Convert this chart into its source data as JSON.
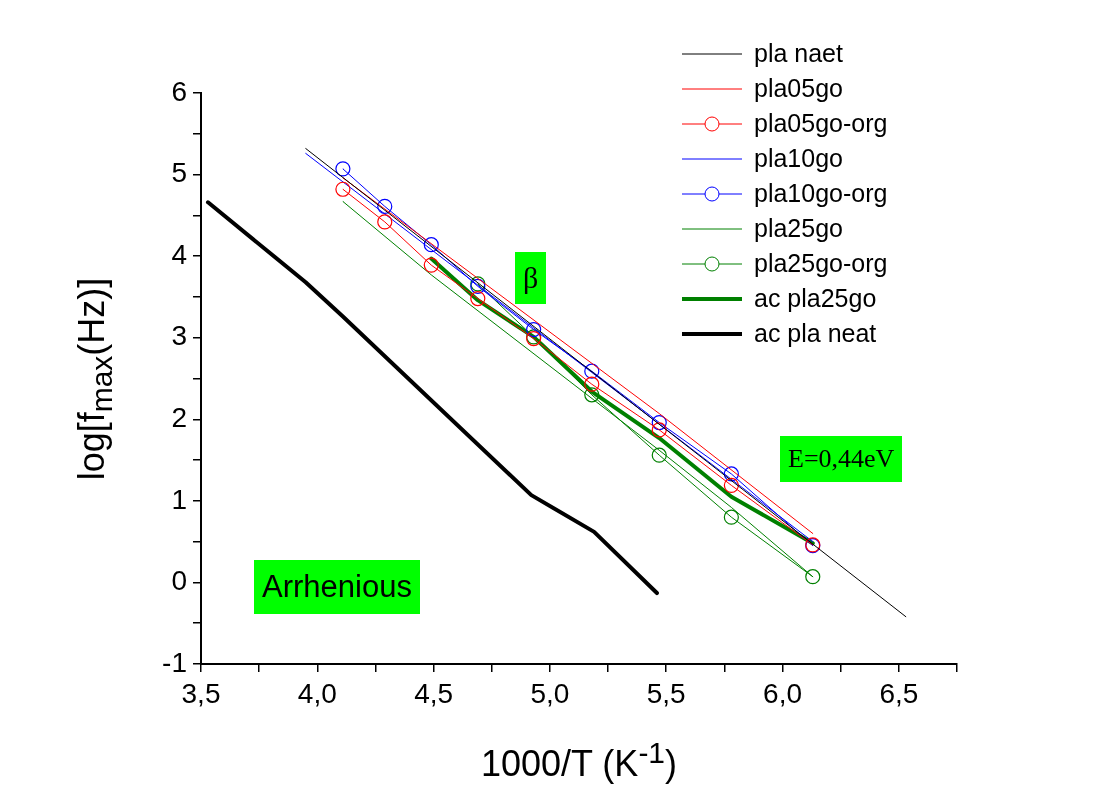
{
  "chart_data": {
    "type": "line",
    "xlabel": "1000/T (K$^{-1}$)",
    "ylabel": "log[f$_{max}$(Hz)]",
    "xlim": [
      3.5,
      6.75
    ],
    "xticks": [
      {
        "value": 3.5,
        "label": "3,5"
      },
      {
        "value": 3.75,
        "label": null
      },
      {
        "value": 4.0,
        "label": "4,0"
      },
      {
        "value": 4.25,
        "label": null
      },
      {
        "value": 4.5,
        "label": "4,5"
      },
      {
        "value": 4.75,
        "label": null
      },
      {
        "value": 5.0,
        "label": "5,0"
      },
      {
        "value": 5.25,
        "label": null
      },
      {
        "value": 5.5,
        "label": "5,5"
      },
      {
        "value": 5.75,
        "label": null
      },
      {
        "value": 6.0,
        "label": "6,0"
      },
      {
        "value": 6.25,
        "label": null
      },
      {
        "value": 6.5,
        "label": "6,5"
      },
      {
        "value": 6.75,
        "label": null
      }
    ],
    "ylim": [
      -1,
      6
    ],
    "yticks": [
      -1,
      {
        "value": -0.5,
        "label": null
      },
      0,
      {
        "value": 0.5,
        "label": null
      },
      1,
      {
        "value": 1.5,
        "label": null
      },
      2,
      {
        "value": 2.5,
        "label": null
      },
      3,
      {
        "value": 3.5,
        "label": null
      },
      4,
      {
        "value": 4.5,
        "label": null
      },
      5,
      {
        "value": 5.5,
        "label": null
      },
      6
    ],
    "grid": false,
    "legend": "top right",
    "line_style": "solid",
    "annotations": [
      "β",
      "E=0,44eV",
      "Arrhenious"
    ],
    "series": [
      {
        "name": "pla naet",
        "color": "#000000",
        "marker": "none",
        "x": [
          3.95,
          6.53
        ],
        "values": [
          5.32,
          -0.42
        ]
      },
      {
        "name": "pla05go",
        "color": "#ff0000",
        "marker": "none",
        "x": [
          4.11,
          5.47,
          6.13
        ],
        "values": [
          4.96,
          2.07,
          0.6
        ]
      },
      {
        "name": "pla05go-org",
        "color": "#ff0000",
        "marker": "circle",
        "x": [
          4.11,
          4.29,
          4.49,
          4.69,
          4.93,
          5.18,
          5.47,
          5.78,
          6.13
        ],
        "values": [
          4.82,
          4.42,
          3.89,
          3.48,
          2.99,
          2.43,
          1.87,
          1.19,
          0.46
        ]
      },
      {
        "name": "pla10go",
        "color": "#0000ff",
        "marker": "none",
        "x": [
          3.95,
          6.13
        ],
        "values": [
          5.26,
          0.5
        ]
      },
      {
        "name": "pla10go-org",
        "color": "#0000ff",
        "marker": "circle",
        "x": [
          4.11,
          4.29,
          4.49,
          4.69,
          4.93,
          5.18,
          5.47,
          5.78,
          6.13
        ],
        "values": [
          5.07,
          4.61,
          4.14,
          3.63,
          3.1,
          2.59,
          1.96,
          1.33,
          0.45
        ]
      },
      {
        "name": "pla25go",
        "color": "#008000",
        "marker": "none",
        "x": [
          4.11,
          4.49,
          5.47,
          5.78,
          6.13
        ],
        "values": [
          4.67,
          3.77,
          1.62,
          0.92,
          0.07
        ]
      },
      {
        "name": "pla25go-org",
        "color": "#008000",
        "marker": "circle",
        "x": [
          4.69,
          4.93,
          5.18,
          5.47,
          5.78,
          6.13
        ],
        "values": [
          3.66,
          3.01,
          2.3,
          1.56,
          0.8,
          0.07
        ]
      },
      {
        "name": "ac pla25go",
        "color": "#008000",
        "marker": "none",
        "x": [
          4.49,
          4.69,
          4.93,
          5.18,
          5.47,
          5.78,
          6.13
        ],
        "values": [
          3.97,
          3.46,
          3.01,
          2.34,
          1.77,
          1.05,
          0.48
        ]
      },
      {
        "name": "ac pla neat",
        "color": "#000000",
        "marker": "none",
        "x": [
          3.53,
          3.95,
          4.11,
          4.92,
          5.19,
          5.46
        ],
        "values": [
          4.66,
          3.68,
          3.26,
          1.07,
          0.62,
          -0.13
        ]
      }
    ]
  }
}
